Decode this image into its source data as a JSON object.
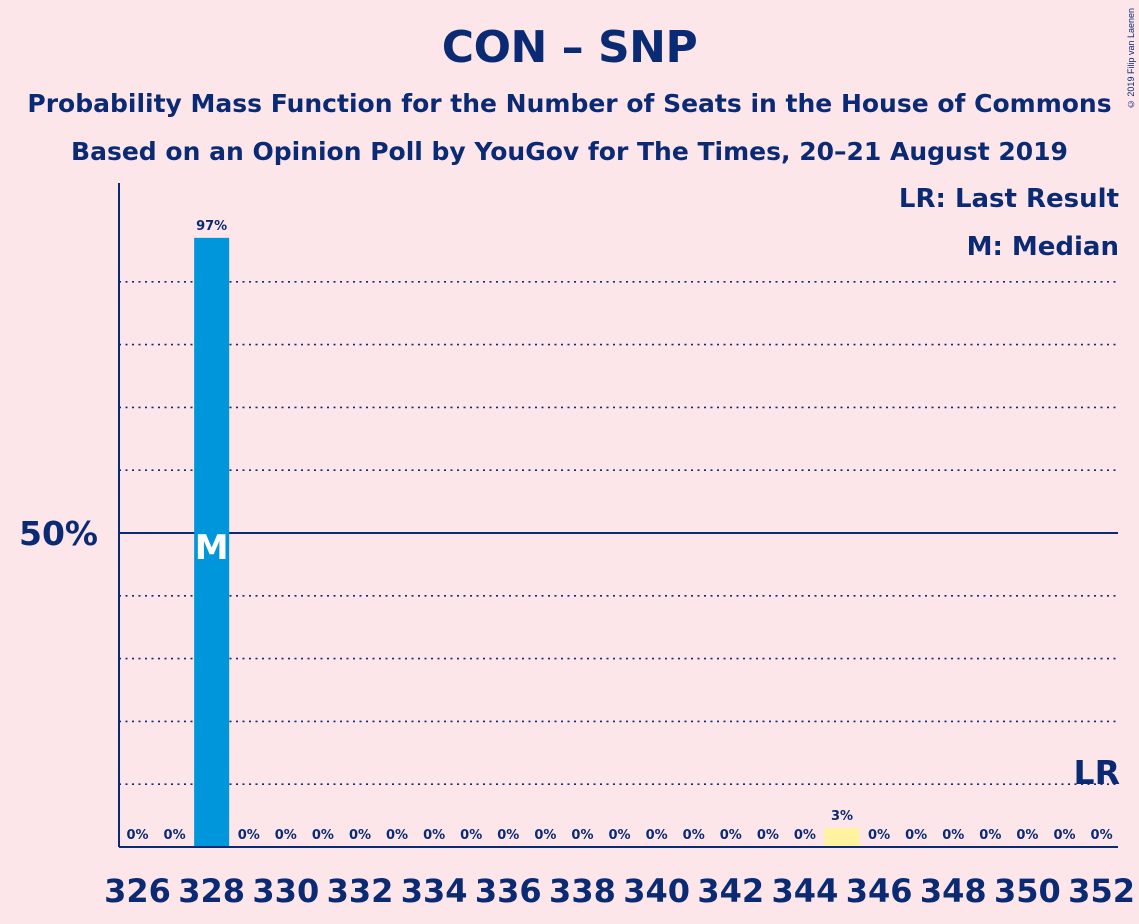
{
  "title": "CON – SNP",
  "subtitle1": "Probability Mass Function for the Number of Seats in the House of Commons",
  "subtitle2": "Based on an Opinion Poll by YouGov for The Times, 20–21 August 2019",
  "copyright": "© 2019 Filip van Laenen",
  "legend": {
    "last_result": "LR: Last Result",
    "median": "M: Median"
  },
  "colors": {
    "background": "#fde6ea",
    "text": "#0b2a74",
    "bar": "#0096db",
    "last_result_bar": "#fff3a0"
  },
  "chart_data": {
    "type": "bar",
    "x": [
      326,
      327,
      328,
      329,
      330,
      331,
      332,
      333,
      334,
      335,
      336,
      337,
      338,
      339,
      340,
      341,
      342,
      343,
      344,
      345,
      346,
      347,
      348,
      349,
      350,
      351,
      352
    ],
    "values": [
      0,
      0,
      97,
      0,
      0,
      0,
      0,
      0,
      0,
      0,
      0,
      0,
      0,
      0,
      0,
      0,
      0,
      0,
      0,
      3,
      0,
      0,
      0,
      0,
      0,
      0,
      0
    ],
    "value_labels": [
      "0%",
      "0%",
      "97%",
      "0%",
      "0%",
      "0%",
      "0%",
      "0%",
      "0%",
      "0%",
      "0%",
      "0%",
      "0%",
      "0%",
      "0%",
      "0%",
      "0%",
      "0%",
      "0%",
      "3%",
      "0%",
      "0%",
      "0%",
      "0%",
      "0%",
      "0%",
      "0%"
    ],
    "x_tick_labels": [
      "326",
      "328",
      "330",
      "332",
      "334",
      "336",
      "338",
      "340",
      "342",
      "344",
      "346",
      "348",
      "350",
      "352"
    ],
    "y_tick_label": "50%",
    "y_tick_value": 50,
    "ylim": [
      0,
      106
    ],
    "grid_values": [
      10,
      20,
      30,
      40,
      60,
      70,
      80,
      90
    ],
    "median": 328,
    "median_label": "M",
    "last_result": 345,
    "last_result_label": "LR",
    "highlight": 345
  }
}
